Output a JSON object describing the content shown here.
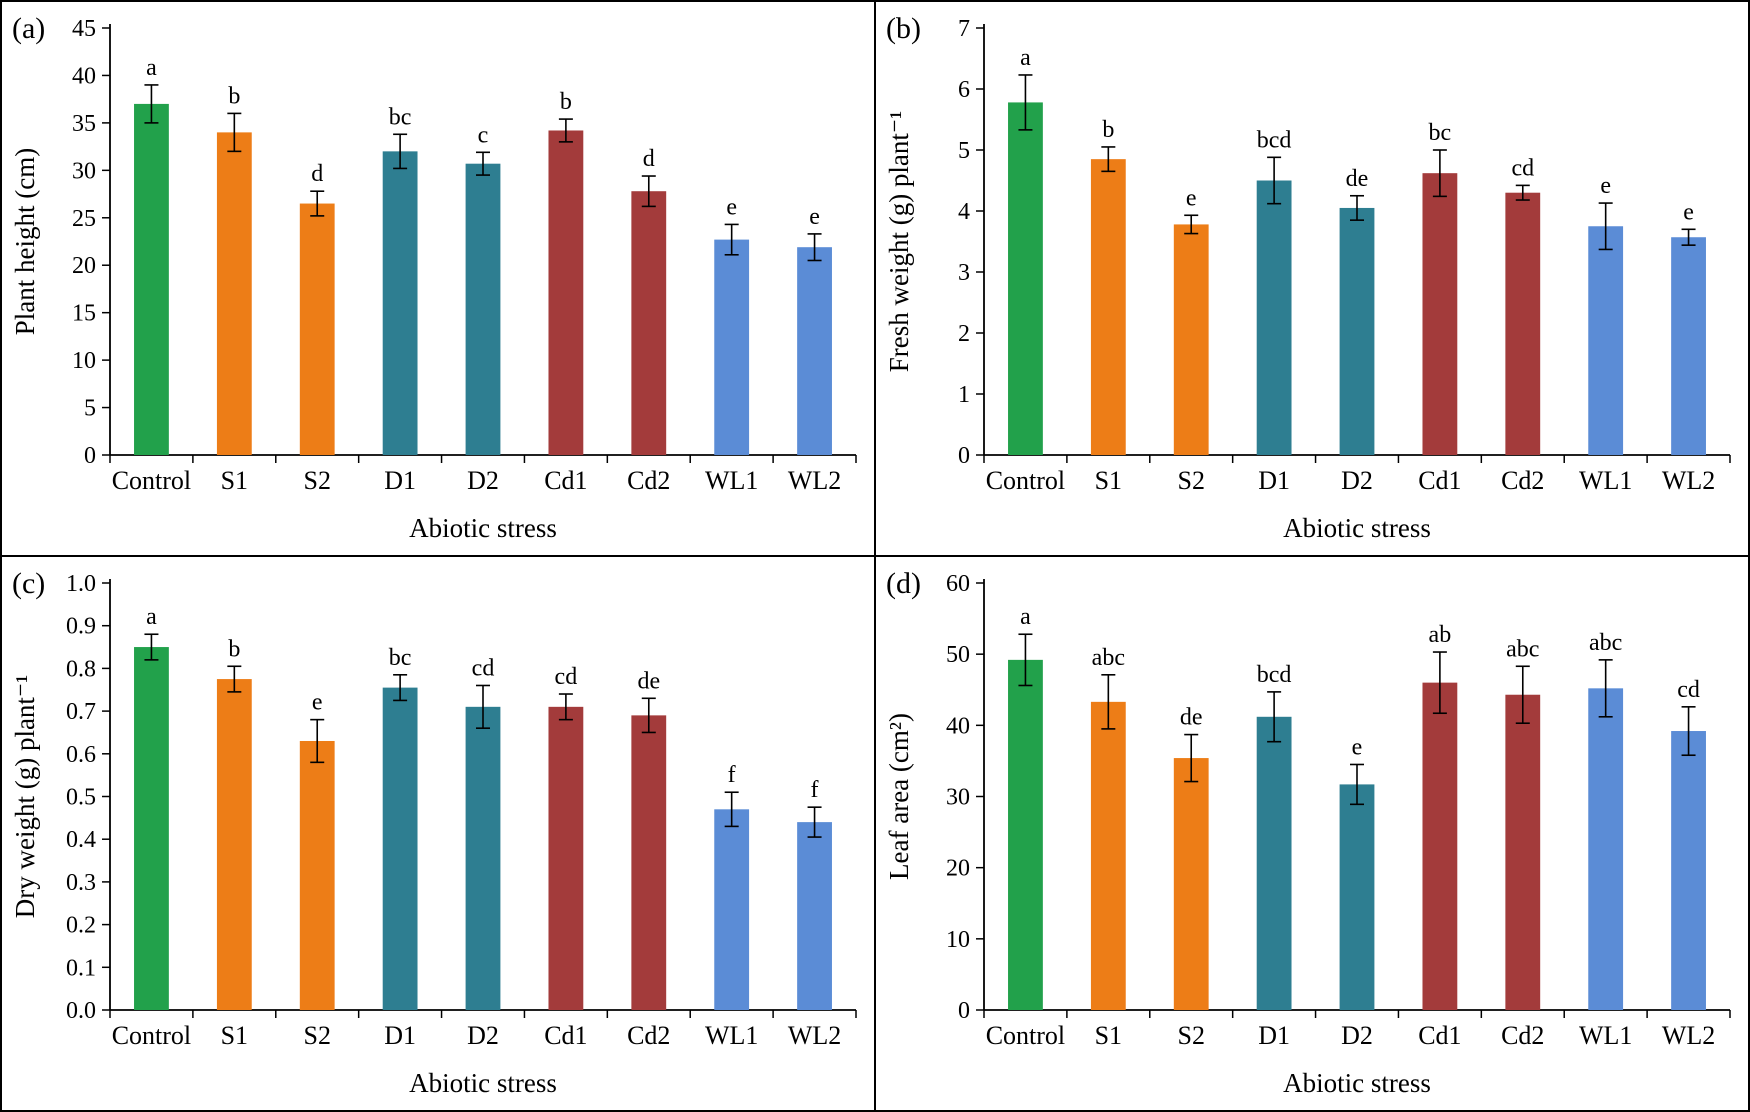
{
  "figure": {
    "background": "#ffffff",
    "border_color": "#000000",
    "bar_colors_legend": {
      "control": "#22A14B",
      "salinity": "#ED7D17",
      "drought": "#2E7E91",
      "cadmium": "#A33B3B",
      "waterlogging": "#5B8CD6"
    }
  },
  "chart_data": [
    {
      "type": "bar",
      "panel_label": "(a)",
      "xlabel": "Abiotic stress",
      "ylabel": "Plant height (cm)",
      "categories": [
        "Control",
        "S1",
        "S2",
        "D1",
        "D2",
        "Cd1",
        "Cd2",
        "WL1",
        "WL2"
      ],
      "values": [
        37.0,
        34.0,
        26.5,
        32.0,
        30.7,
        34.2,
        27.8,
        22.7,
        21.9
      ],
      "errors": [
        2.0,
        2.0,
        1.3,
        1.8,
        1.2,
        1.2,
        1.6,
        1.6,
        1.4
      ],
      "sig_letters": [
        "a",
        "b",
        "d",
        "bc",
        "c",
        "b",
        "d",
        "e",
        "e"
      ],
      "ylim": [
        0,
        45
      ],
      "ytick_step": 5,
      "ytick_decimals": 0,
      "grid": false,
      "legend": "none",
      "colors": [
        "#22A14B",
        "#ED7D17",
        "#ED7D17",
        "#2E7E91",
        "#2E7E91",
        "#A33B3B",
        "#A33B3B",
        "#5B8CD6",
        "#5B8CD6"
      ]
    },
    {
      "type": "bar",
      "panel_label": "(b)",
      "xlabel": "Abiotic stress",
      "ylabel": "Fresh weight (g) plant⁻¹",
      "categories": [
        "Control",
        "S1",
        "S2",
        "D1",
        "D2",
        "Cd1",
        "Cd2",
        "WL1",
        "WL2"
      ],
      "values": [
        5.78,
        4.85,
        3.78,
        4.5,
        4.05,
        4.62,
        4.3,
        3.75,
        3.57
      ],
      "errors": [
        0.45,
        0.2,
        0.15,
        0.38,
        0.2,
        0.38,
        0.12,
        0.38,
        0.13
      ],
      "sig_letters": [
        "a",
        "b",
        "e",
        "bcd",
        "de",
        "bc",
        "cd",
        "e",
        "e"
      ],
      "ylim": [
        0,
        7
      ],
      "ytick_step": 1,
      "ytick_decimals": 0,
      "grid": false,
      "legend": "none",
      "colors": [
        "#22A14B",
        "#ED7D17",
        "#ED7D17",
        "#2E7E91",
        "#2E7E91",
        "#A33B3B",
        "#A33B3B",
        "#5B8CD6",
        "#5B8CD6"
      ]
    },
    {
      "type": "bar",
      "panel_label": "(c)",
      "xlabel": "Abiotic stress",
      "ylabel": "Dry weight (g) plant⁻¹",
      "categories": [
        "Control",
        "S1",
        "S2",
        "D1",
        "D2",
        "Cd1",
        "Cd2",
        "WL1",
        "WL2"
      ],
      "values": [
        0.85,
        0.775,
        0.63,
        0.755,
        0.71,
        0.71,
        0.69,
        0.47,
        0.44
      ],
      "errors": [
        0.03,
        0.03,
        0.05,
        0.03,
        0.05,
        0.03,
        0.04,
        0.04,
        0.035
      ],
      "sig_letters": [
        "a",
        "b",
        "e",
        "bc",
        "cd",
        "cd",
        "de",
        "f",
        "f"
      ],
      "ylim": [
        0,
        1.0
      ],
      "ytick_step": 0.1,
      "ytick_decimals": 1,
      "grid": false,
      "legend": "none",
      "colors": [
        "#22A14B",
        "#ED7D17",
        "#ED7D17",
        "#2E7E91",
        "#2E7E91",
        "#A33B3B",
        "#A33B3B",
        "#5B8CD6",
        "#5B8CD6"
      ]
    },
    {
      "type": "bar",
      "panel_label": "(d)",
      "xlabel": "Abiotic stress",
      "ylabel": "Leaf area (cm²)",
      "categories": [
        "Control",
        "S1",
        "S2",
        "D1",
        "D2",
        "Cd1",
        "Cd2",
        "WL1",
        "WL2"
      ],
      "values": [
        49.2,
        43.3,
        35.4,
        41.2,
        31.7,
        46.0,
        44.3,
        45.2,
        39.2
      ],
      "errors": [
        3.6,
        3.8,
        3.3,
        3.5,
        2.8,
        4.3,
        4.0,
        4.0,
        3.4
      ],
      "sig_letters": [
        "a",
        "abc",
        "de",
        "bcd",
        "e",
        "ab",
        "abc",
        "abc",
        "cd"
      ],
      "ylim": [
        0,
        60
      ],
      "ytick_step": 10,
      "ytick_decimals": 0,
      "grid": false,
      "legend": "none",
      "colors": [
        "#22A14B",
        "#ED7D17",
        "#ED7D17",
        "#2E7E91",
        "#2E7E91",
        "#A33B3B",
        "#A33B3B",
        "#5B8CD6",
        "#5B8CD6"
      ]
    }
  ]
}
